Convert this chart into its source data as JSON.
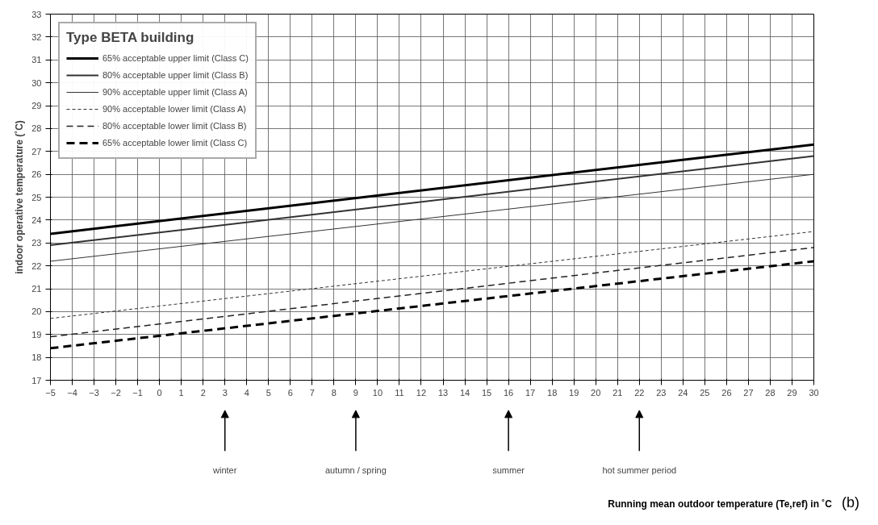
{
  "chart_data": {
    "type": "line",
    "legend_title": "Type BETA building",
    "ylabel": "indoor operative temperature (˚C)",
    "x": [
      -5,
      30
    ],
    "series": [
      {
        "name": "65% acceptable upper limit (Class C)",
        "color": "#000000",
        "line_style": "solid",
        "values": [
          23.4,
          27.3
        ]
      },
      {
        "name": "80% acceptable upper limit (Class B)",
        "color": "#333333",
        "line_style": "solid",
        "values": [
          22.9,
          26.8
        ]
      },
      {
        "name": "90% acceptable upper limit (Class A)",
        "color": "#333333",
        "line_style": "solid",
        "values": [
          22.2,
          26.0
        ]
      },
      {
        "name": "90% acceptable lower limit (Class A)",
        "color": "#333333",
        "line_style": "dotted",
        "values": [
          19.7,
          23.5
        ]
      },
      {
        "name": "80% acceptable lower limit (Class B)",
        "color": "#222222",
        "line_style": "dashed",
        "values": [
          18.9,
          22.8
        ]
      },
      {
        "name": "65% acceptable lower limit (Class C)",
        "color": "#000000",
        "line_style": "dashed",
        "values": [
          18.4,
          22.2
        ]
      }
    ],
    "xlim": [
      -5,
      30
    ],
    "xticks": [
      -5,
      -4,
      -3,
      -2,
      -1,
      0,
      1,
      2,
      3,
      4,
      5,
      6,
      7,
      8,
      9,
      10,
      11,
      12,
      13,
      14,
      15,
      16,
      17,
      18,
      19,
      20,
      21,
      22,
      23,
      24,
      25,
      26,
      27,
      28,
      29,
      30
    ],
    "ylim": [
      17,
      33
    ],
    "yticks": [
      17,
      18,
      19,
      20,
      21,
      22,
      23,
      24,
      25,
      26,
      27,
      28,
      29,
      30,
      31,
      32,
      33
    ],
    "grid": true,
    "legend": "top left",
    "marker": "none",
    "annotations": [
      "winter",
      "autumn / spring",
      "summer",
      "hot summer period",
      "Running mean outdoor temperature (Te,ref) in ˚C",
      "(b)"
    ]
  }
}
